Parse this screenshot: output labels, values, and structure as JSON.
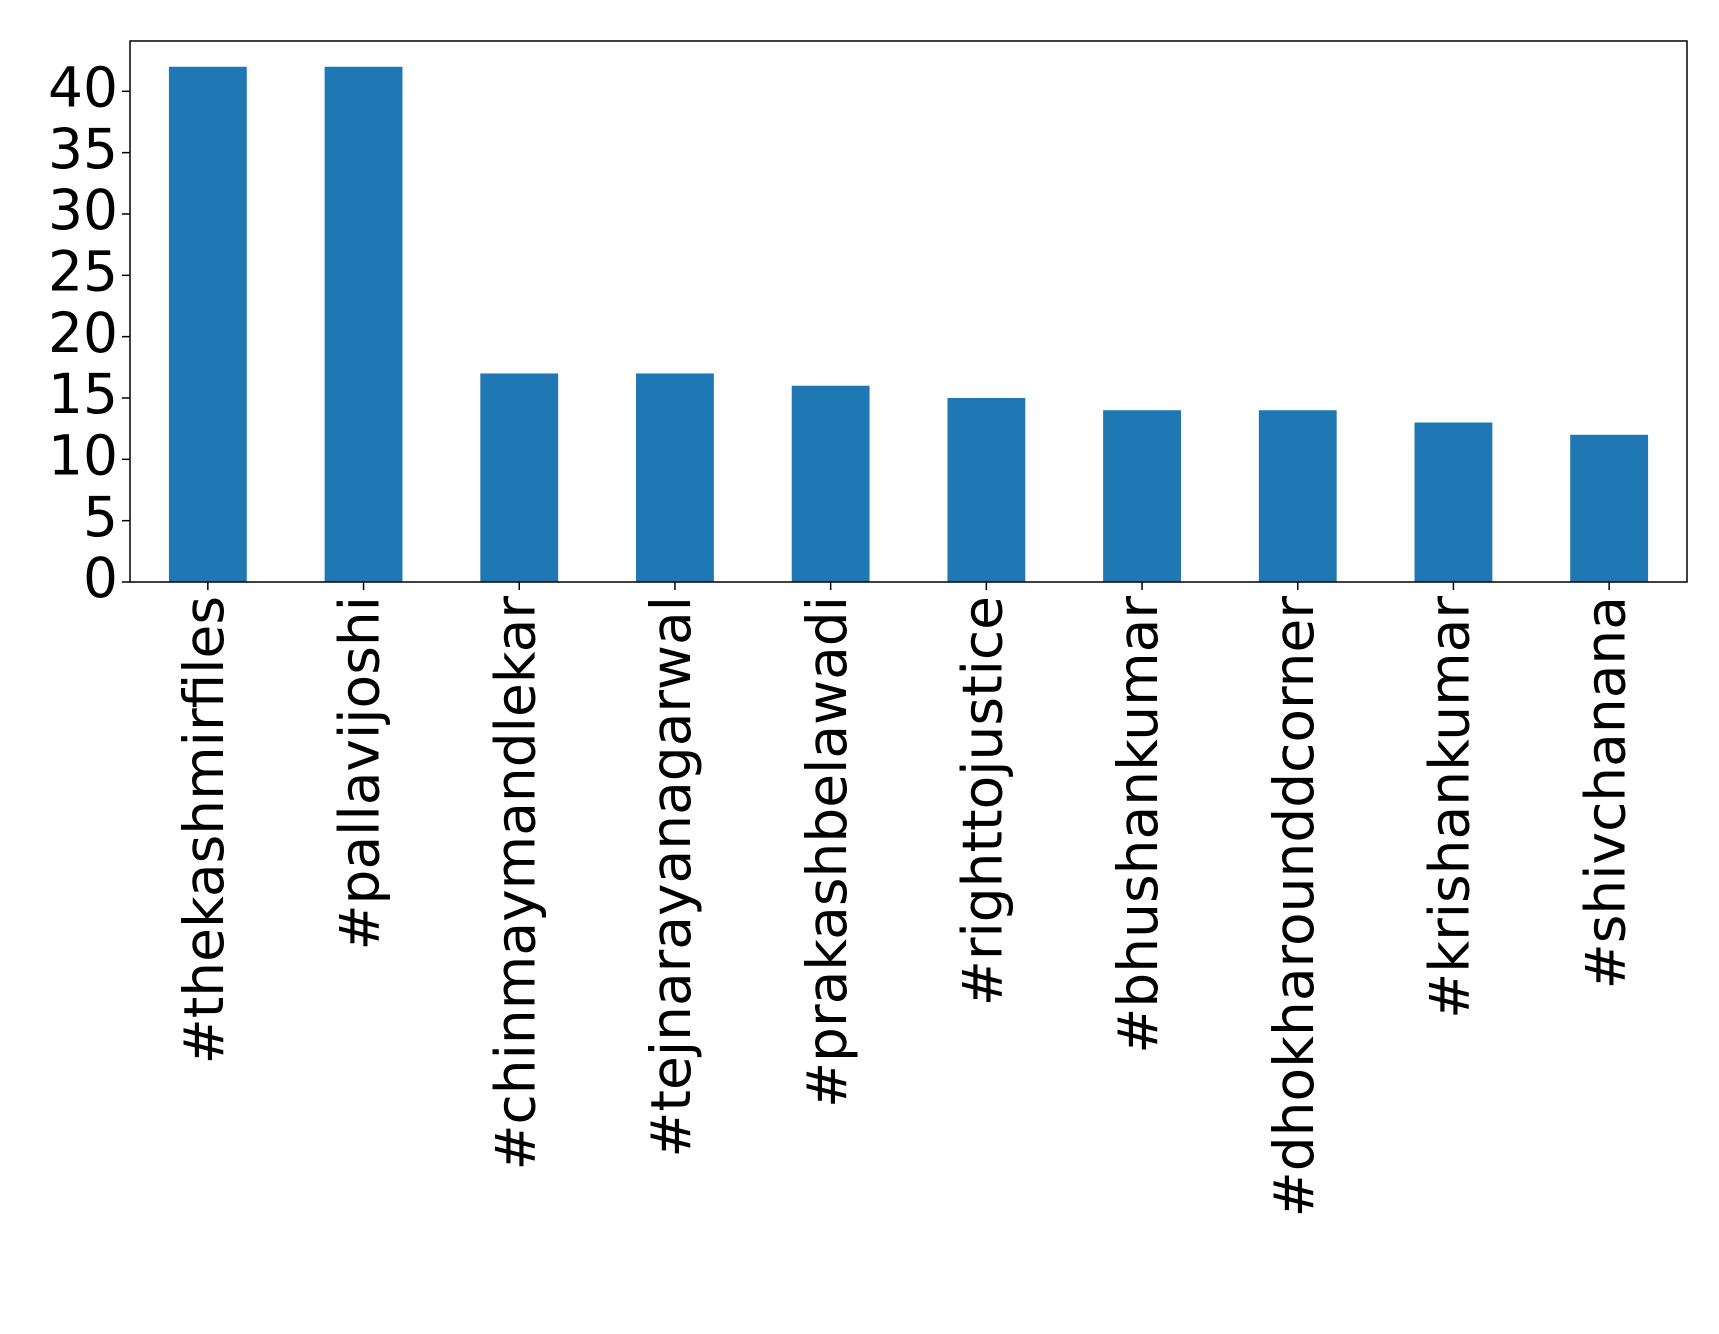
{
  "chart_data": {
    "type": "bar",
    "categories": [
      "#thekashmirfiles",
      "#pallavijoshi",
      "#chinmaymandlekar",
      "#tejnarayanagarwal",
      "#prakashbelawadi",
      "#righttojustice",
      "#bhushankumar",
      "#dhokharounddcorner",
      "#krishankumar",
      "#shivchanana"
    ],
    "values": [
      42,
      42,
      17,
      17,
      16,
      15,
      14,
      14,
      13,
      12
    ],
    "color": "#1f77b4",
    "ylim": [
      0,
      44.1
    ],
    "yticks": [
      0,
      5,
      10,
      15,
      20,
      25,
      30,
      35,
      40
    ],
    "grid": false
  }
}
